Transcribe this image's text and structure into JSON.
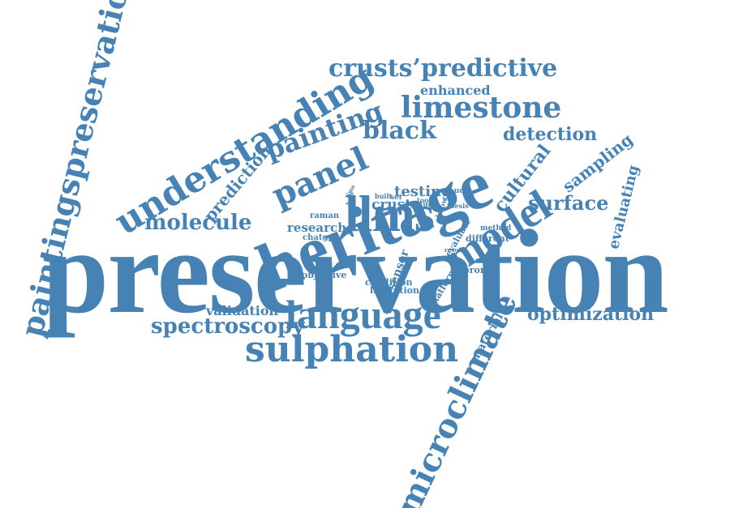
{
  "colors": {
    "word": "#4682b4",
    "background": "#ffffff"
  },
  "cloud": {
    "preservation": "preservation",
    "heritage": "heritage",
    "paintingspreservation": "paintingspreservation",
    "understanding": "understanding",
    "microclimate": "microclimate",
    "language": "language",
    "sulphation": "sulphation",
    "llms": "llms",
    "model": "model",
    "painting": "painting",
    "panel": "panel",
    "limestone": "limestone",
    "crusts_predictive": "crusts’predictive",
    "black": "black",
    "detection": "detection",
    "enhanced": "enhanced",
    "cultural": "cultural",
    "surface": "surface",
    "sampling": "sampling",
    "evaluating": "evaluating",
    "molecule": "molecule",
    "prediction": "prediction",
    "spectroscopy": "spectroscopy",
    "validation": "validation",
    "optimization": "optimization",
    "material": "material",
    "research": "research",
    "crust": "crust",
    "testing": "testing",
    "raman": "raman",
    "chatgpt": "chatgpt",
    "study": "study",
    "claude": "claude",
    "built": "built",
    "ser": "ser",
    "tool": "tool",
    "know": "know",
    "thesis": "thesis",
    "method": "method",
    "different": "different",
    "evaluate": "evaluate",
    "result": "result",
    "sensor": "sensor",
    "prompt": "prompt",
    "platform": "platform",
    "objective": "objective",
    "condition": "condition",
    "limitation": "limitation",
    "time": "time",
    "help": "help"
  }
}
